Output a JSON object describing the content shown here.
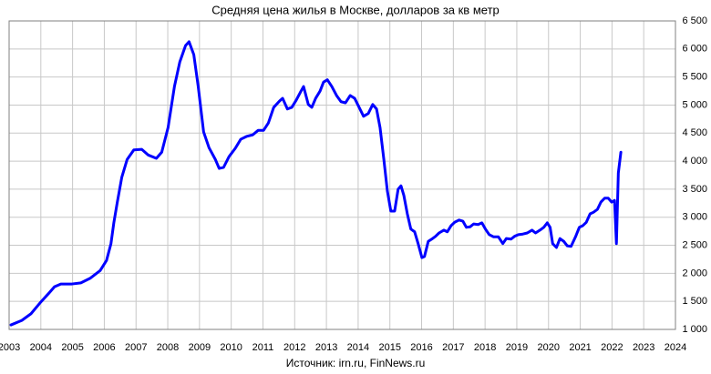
{
  "chart_data": {
    "type": "line",
    "title": "Средняя цена жилья в Москве, долларов за кв метр",
    "source": "Источник: irn.ru, FinNews.ru",
    "x": [
      2003.06,
      2003.4,
      2003.69,
      2003.97,
      2004.26,
      2004.43,
      2004.63,
      2004.98,
      2005.26,
      2005.55,
      2005.87,
      2006.07,
      2006.21,
      2006.3,
      2006.41,
      2006.55,
      2006.72,
      2006.93,
      2007.18,
      2007.38,
      2007.64,
      2007.81,
      2008.01,
      2008.21,
      2008.38,
      2008.56,
      2008.67,
      2008.82,
      2008.96,
      2009.13,
      2009.3,
      2009.5,
      2009.62,
      2009.76,
      2009.93,
      2010.13,
      2010.3,
      2010.48,
      2010.68,
      2010.85,
      2011.02,
      2011.17,
      2011.34,
      2011.52,
      2011.62,
      2011.77,
      2011.91,
      2012.05,
      2012.2,
      2012.28,
      2012.43,
      2012.54,
      2012.66,
      2012.8,
      2012.91,
      2013.03,
      2013.17,
      2013.32,
      2013.46,
      2013.6,
      2013.75,
      2013.89,
      2014.03,
      2014.17,
      2014.32,
      2014.46,
      2014.58,
      2014.69,
      2014.81,
      2014.92,
      2015.03,
      2015.15,
      2015.26,
      2015.35,
      2015.44,
      2015.55,
      2015.66,
      2015.78,
      2015.89,
      2016.01,
      2016.09,
      2016.21,
      2016.32,
      2016.44,
      2016.55,
      2016.7,
      2016.81,
      2016.93,
      2017.04,
      2017.18,
      2017.3,
      2017.41,
      2017.53,
      2017.64,
      2017.78,
      2017.9,
      2018.01,
      2018.13,
      2018.27,
      2018.42,
      2018.56,
      2018.67,
      2018.82,
      2018.93,
      2019.05,
      2019.19,
      2019.33,
      2019.48,
      2019.59,
      2019.73,
      2019.85,
      2019.96,
      2020.05,
      2020.13,
      2020.25,
      2020.36,
      2020.48,
      2020.59,
      2020.71,
      2020.85,
      2020.97,
      2021.08,
      2021.19,
      2021.31,
      2021.42,
      2021.54,
      2021.65,
      2021.77,
      2021.88,
      2021.99,
      2022.08,
      2022.14,
      2022.2,
      2022.28
    ],
    "values": [
      1080,
      1160,
      1280,
      1470,
      1650,
      1760,
      1810,
      1810,
      1830,
      1910,
      2050,
      2230,
      2530,
      2900,
      3270,
      3710,
      4030,
      4200,
      4210,
      4110,
      4050,
      4160,
      4600,
      5330,
      5770,
      6060,
      6130,
      5900,
      5330,
      4520,
      4240,
      4030,
      3870,
      3890,
      4080,
      4230,
      4390,
      4440,
      4470,
      4550,
      4550,
      4680,
      4960,
      5070,
      5120,
      4930,
      4960,
      5090,
      5250,
      5330,
      5010,
      4960,
      5120,
      5250,
      5410,
      5450,
      5330,
      5170,
      5060,
      5040,
      5170,
      5120,
      4960,
      4800,
      4850,
      5010,
      4930,
      4600,
      4030,
      3470,
      3110,
      3110,
      3500,
      3560,
      3390,
      3060,
      2790,
      2740,
      2530,
      2280,
      2300,
      2570,
      2610,
      2660,
      2720,
      2770,
      2740,
      2850,
      2910,
      2950,
      2930,
      2820,
      2830,
      2880,
      2870,
      2900,
      2790,
      2690,
      2650,
      2650,
      2530,
      2620,
      2610,
      2660,
      2690,
      2700,
      2720,
      2770,
      2720,
      2770,
      2820,
      2900,
      2820,
      2530,
      2460,
      2620,
      2570,
      2490,
      2480,
      2650,
      2820,
      2850,
      2910,
      3060,
      3090,
      3140,
      3270,
      3340,
      3340,
      3270,
      3300,
      2530,
      3790,
      4160
    ],
    "color": "#0000ff",
    "xlim": [
      2003,
      2024
    ],
    "xticks": [
      2003,
      2004,
      2005,
      2006,
      2007,
      2008,
      2009,
      2010,
      2011,
      2012,
      2013,
      2014,
      2015,
      2016,
      2017,
      2018,
      2019,
      2020,
      2021,
      2022,
      2023,
      2024
    ],
    "ylim": [
      1000,
      6500
    ],
    "yticks": [
      {
        "value": 1000,
        "label": "1 000"
      },
      {
        "value": 1500,
        "label": "1 500"
      },
      {
        "value": 2000,
        "label": "2 000"
      },
      {
        "value": 2500,
        "label": "2 500"
      },
      {
        "value": 3000,
        "label": "3 000"
      },
      {
        "value": 3500,
        "label": "3 500"
      },
      {
        "value": 4000,
        "label": "4 000"
      },
      {
        "value": 4500,
        "label": "4 500"
      },
      {
        "value": 5000,
        "label": "5 000"
      },
      {
        "value": 5500,
        "label": "5 500"
      },
      {
        "value": 6000,
        "label": "6 000"
      },
      {
        "value": 6500,
        "label": "6 500"
      }
    ],
    "grid": true
  }
}
